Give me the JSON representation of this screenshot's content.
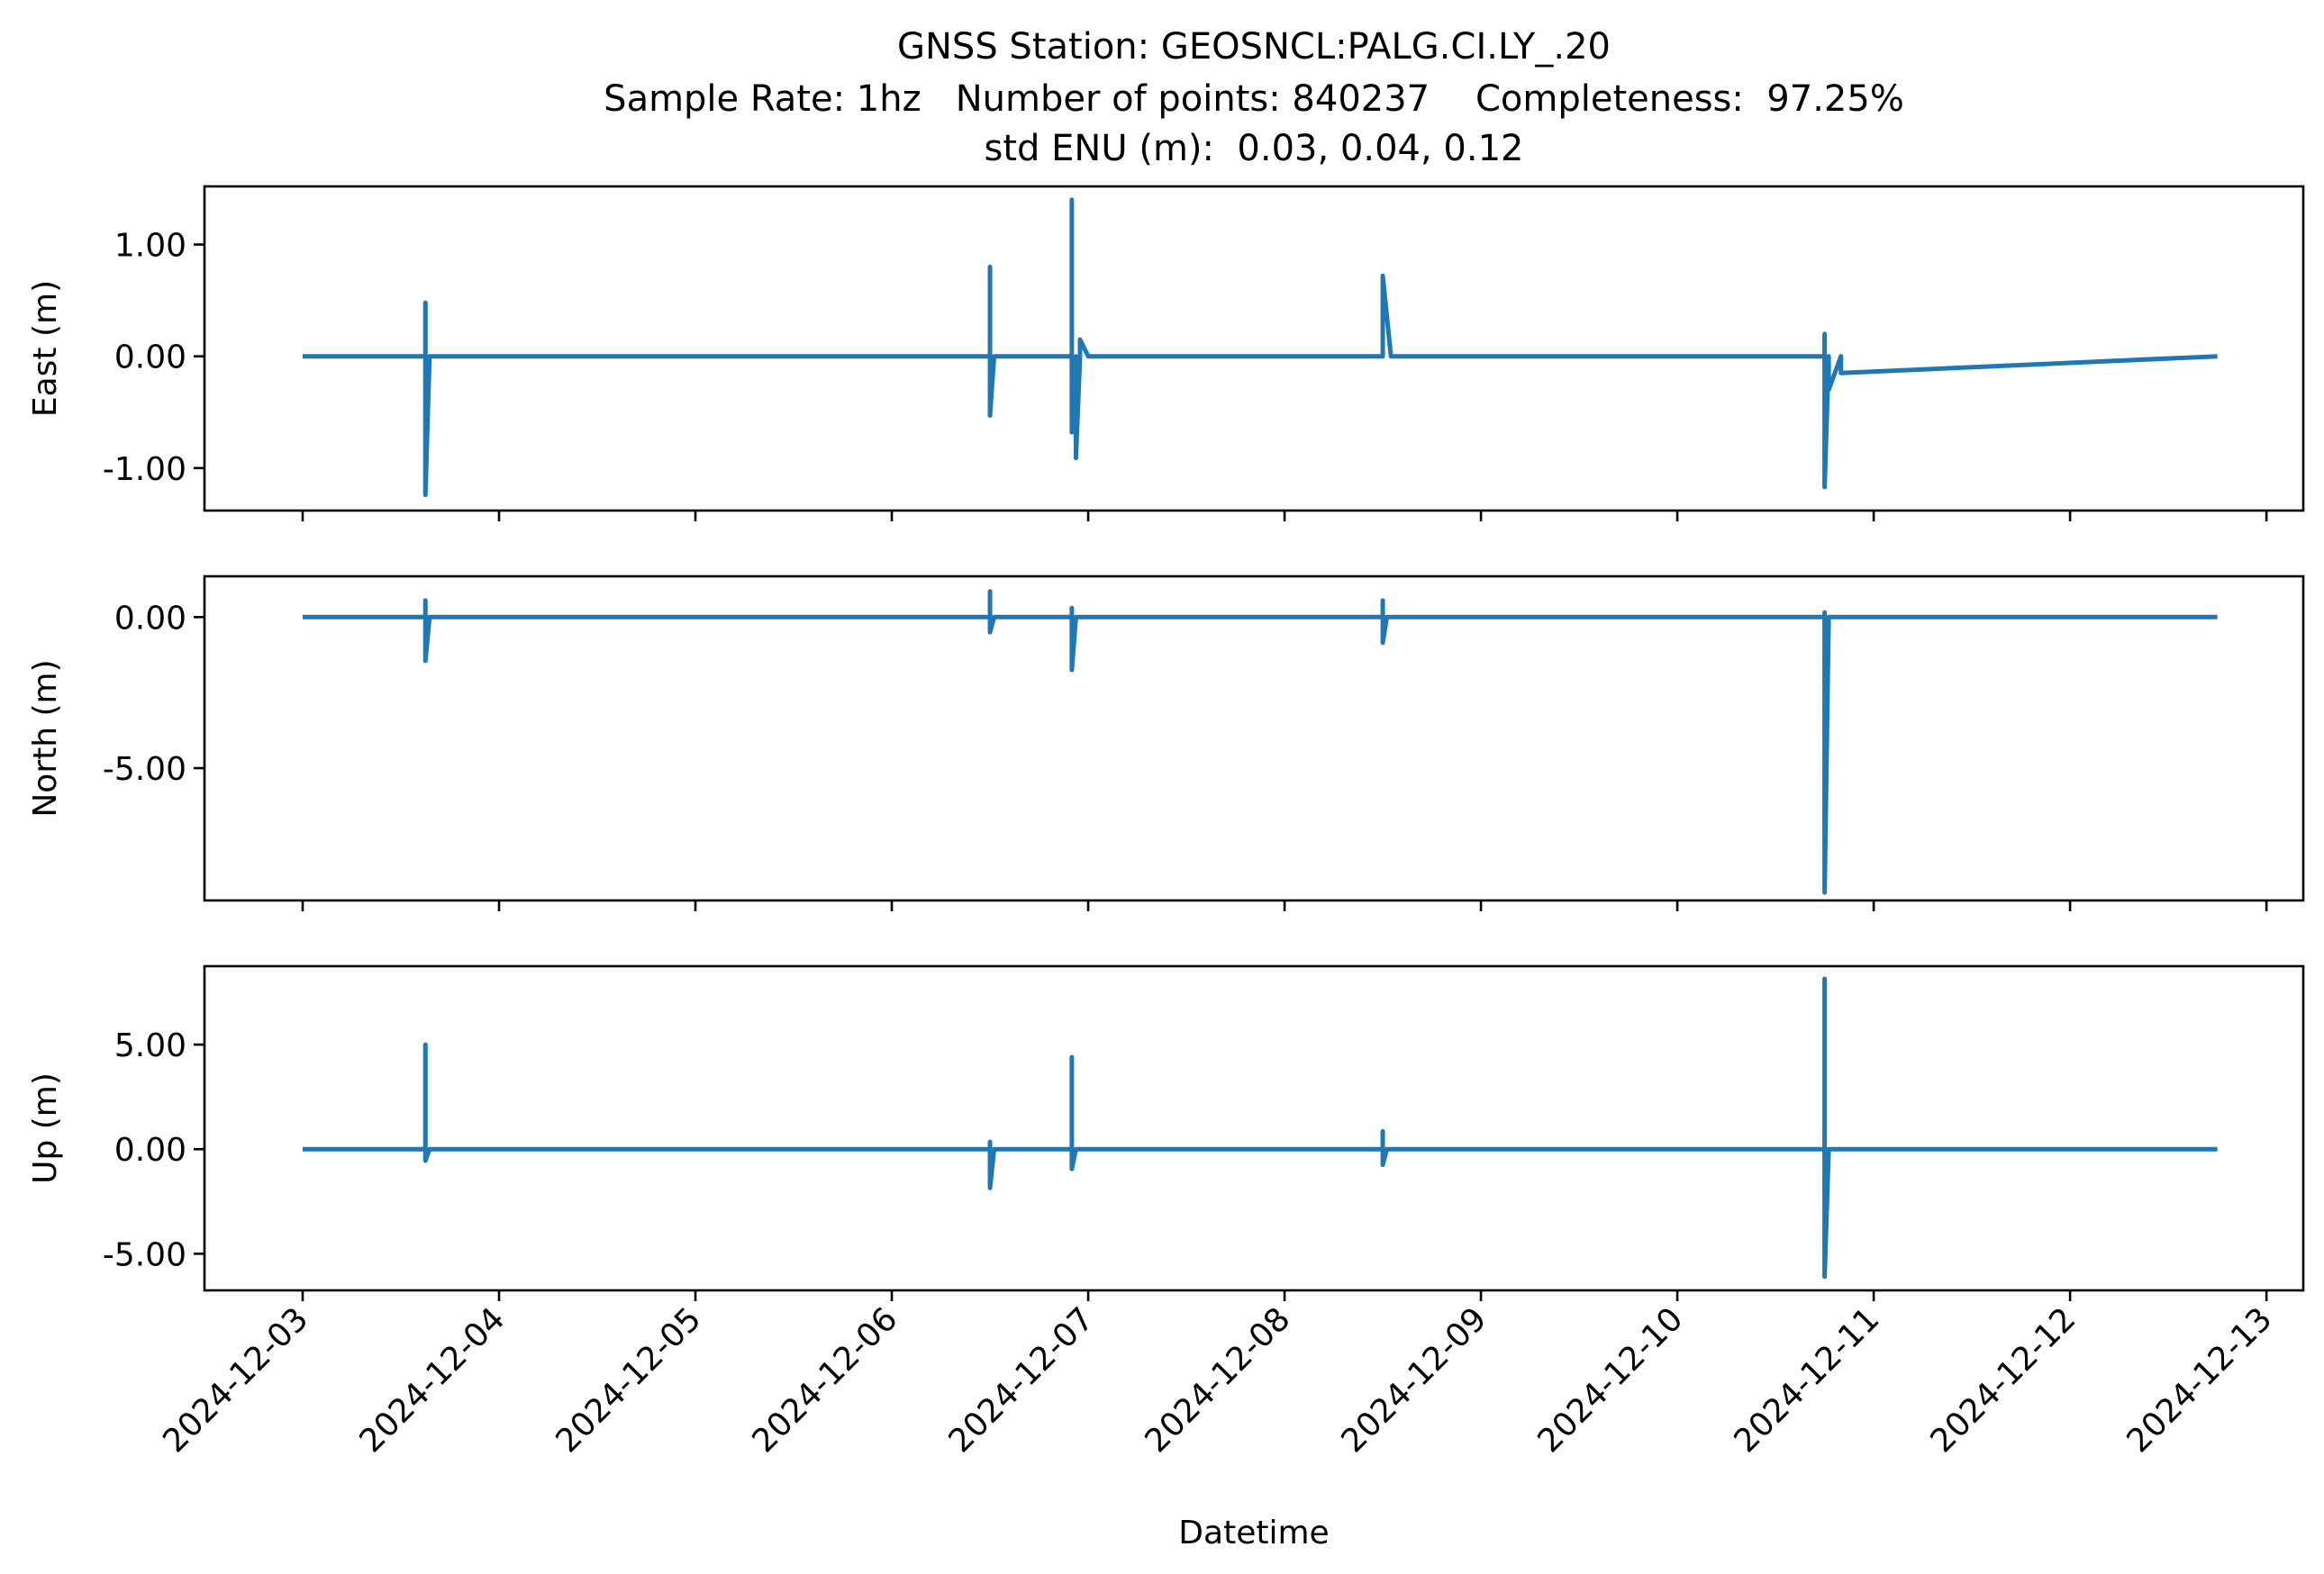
{
  "chart_data": {
    "type": "line",
    "title": "GNSS Station: GEOSNCL:PALG.CI.LY_.20",
    "subtitle_line_2": "Sample Rate: 1hz   Number of points: 840237    Completeness:  97.25%",
    "subtitle_line_3": "std ENU (m):  0.03, 0.04, 0.12",
    "xlabel": "Datetime",
    "x_tick_labels": [
      "2024-12-03",
      "2024-12-04",
      "2024-12-05",
      "2024-12-06",
      "2024-12-07",
      "2024-12-08",
      "2024-12-09",
      "2024-12-10",
      "2024-12-11",
      "2024-12-12",
      "2024-12-13"
    ],
    "x_range": [
      "2024-12-02 12:00",
      "2024-12-13 04:30"
    ],
    "line_color": "#1f77b4",
    "grid": false,
    "legend": "none",
    "panels": [
      {
        "id": "east",
        "ylabel": "East (m)",
        "ylim": [
          -1.38,
          1.52
        ],
        "ytick_values": [
          -1.0,
          0.0,
          1.0
        ],
        "ytick_labels": [
          "-1.00",
          "0.00",
          "1.00"
        ],
        "data": {
          "x": [
            "2024-12-03 00:00",
            "2024-12-03 15:00",
            "2024-12-03 15:00",
            "2024-12-03 15:00",
            "2024-12-03 15:30",
            "2024-12-06 12:00",
            "2024-12-06 12:00",
            "2024-12-06 12:00",
            "2024-12-06 12:30",
            "2024-12-06 22:00",
            "2024-12-06 22:00",
            "2024-12-06 22:00",
            "2024-12-06 22:30",
            "2024-12-06 22:30",
            "2024-12-06 23:00",
            "2024-12-06 23:00",
            "2024-12-07 00:00",
            "2024-12-08 12:00",
            "2024-12-08 12:00",
            "2024-12-08 13:00",
            "2024-12-10 18:00",
            "2024-12-10 18:00",
            "2024-12-10 18:00",
            "2024-12-10 18:30",
            "2024-12-10 18:30",
            "2024-12-10 20:00",
            "2024-12-10 20:00",
            "2024-12-12 18:00"
          ],
          "y": [
            0.0,
            0.0,
            0.48,
            -1.24,
            0.0,
            0.0,
            0.8,
            -0.53,
            0.0,
            0.0,
            1.4,
            -0.68,
            0.0,
            -0.91,
            0.0,
            0.15,
            0.0,
            0.0,
            0.72,
            0.0,
            0.0,
            0.2,
            -1.17,
            0.0,
            -0.3,
            0.0,
            -0.15,
            0.0
          ]
        }
      },
      {
        "id": "north",
        "ylabel": "North (m)",
        "ylim": [
          -9.38,
          1.35
        ],
        "ytick_values": [
          -5.0,
          0.0
        ],
        "ytick_labels": [
          "-5.00",
          "0.00"
        ],
        "data": {
          "x": [
            "2024-12-03 00:00",
            "2024-12-03 15:00",
            "2024-12-03 15:00",
            "2024-12-03 15:00",
            "2024-12-03 15:30",
            "2024-12-06 12:00",
            "2024-12-06 12:00",
            "2024-12-06 12:00",
            "2024-12-06 12:30",
            "2024-12-06 22:00",
            "2024-12-06 22:00",
            "2024-12-06 22:00",
            "2024-12-06 22:30",
            "2024-12-08 12:00",
            "2024-12-08 12:00",
            "2024-12-08 12:00",
            "2024-12-08 12:30",
            "2024-12-10 18:00",
            "2024-12-10 18:00",
            "2024-12-10 18:00",
            "2024-12-10 18:30",
            "2024-12-12 18:00"
          ],
          "y": [
            0.0,
            0.0,
            0.55,
            -1.45,
            0.0,
            0.0,
            0.85,
            -0.5,
            0.0,
            0.0,
            0.3,
            -1.75,
            0.0,
            0.0,
            0.55,
            -0.85,
            0.0,
            0.0,
            0.15,
            -9.12,
            0.0,
            0.0
          ]
        }
      },
      {
        "id": "up",
        "ylabel": "Up (m)",
        "ylim": [
          -6.75,
          8.75
        ],
        "ytick_values": [
          -5.0,
          0.0,
          5.0
        ],
        "ytick_labels": [
          "-5.00",
          "0.00",
          "5.00"
        ],
        "data": {
          "x": [
            "2024-12-03 00:00",
            "2024-12-03 15:00",
            "2024-12-03 15:00",
            "2024-12-03 15:00",
            "2024-12-03 15:30",
            "2024-12-06 12:00",
            "2024-12-06 12:00",
            "2024-12-06 12:00",
            "2024-12-06 12:30",
            "2024-12-06 22:00",
            "2024-12-06 22:00",
            "2024-12-06 22:00",
            "2024-12-06 22:30",
            "2024-12-08 12:00",
            "2024-12-08 12:00",
            "2024-12-08 12:00",
            "2024-12-08 12:30",
            "2024-12-10 18:00",
            "2024-12-10 18:00",
            "2024-12-10 18:00",
            "2024-12-10 18:30",
            "2024-12-12 18:00"
          ],
          "y": [
            0.0,
            0.0,
            5.0,
            -0.55,
            0.0,
            0.0,
            0.35,
            -1.85,
            0.0,
            0.0,
            4.4,
            -0.95,
            0.0,
            0.0,
            0.85,
            -0.75,
            0.0,
            0.0,
            8.15,
            -6.1,
            0.0,
            0.0
          ]
        }
      }
    ]
  }
}
